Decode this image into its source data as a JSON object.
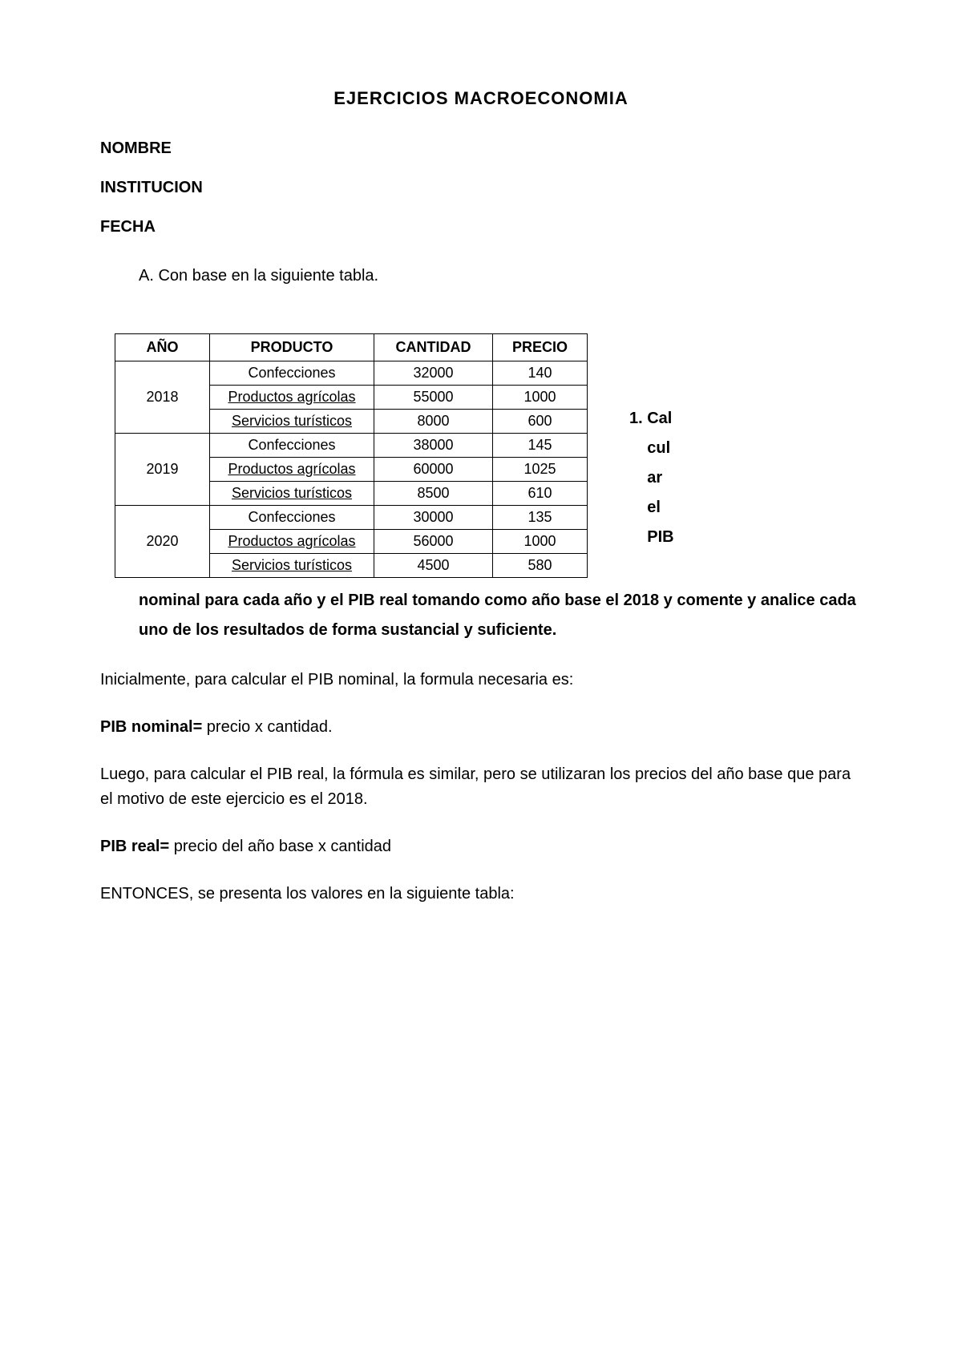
{
  "title": "EJERCICIOS MACROECONOMIA",
  "fields": {
    "nombre": "NOMBRE",
    "institucion": "INSTITUCION",
    "fecha": "FECHA"
  },
  "itemA": "A. Con base en la siguiente tabla.",
  "table": {
    "headers": {
      "year": "AÑO",
      "product": "PRODUCTO",
      "qty": "CANTIDAD",
      "price": "PRECIO"
    },
    "groups": [
      {
        "year": "2018",
        "rows": [
          {
            "product": "Confecciones",
            "qty": "32000",
            "price": "140",
            "underline": false
          },
          {
            "product": "Productos agrícolas",
            "qty": "55000",
            "price": "1000",
            "underline": true
          },
          {
            "product": "Servicios turísticos",
            "qty": "8000",
            "price": "600",
            "underline": true
          }
        ]
      },
      {
        "year": "2019",
        "rows": [
          {
            "product": "Confecciones",
            "qty": "38000",
            "price": "145",
            "underline": false
          },
          {
            "product": "Productos agrícolas",
            "qty": "60000",
            "price": "1025",
            "underline": true
          },
          {
            "product": "Servicios turísticos",
            "qty": "8500",
            "price": "610",
            "underline": true
          }
        ]
      },
      {
        "year": "2020",
        "rows": [
          {
            "product": "Confecciones",
            "qty": "30000",
            "price": "135",
            "underline": false
          },
          {
            "product": "Productos agrícolas",
            "qty": "56000",
            "price": "1000",
            "underline": true
          },
          {
            "product": "Servicios turísticos",
            "qty": "4500",
            "price": "580",
            "underline": true
          }
        ]
      }
    ],
    "border_color": "#000000",
    "cell_fontsize": 18,
    "header_fontsize": 18,
    "background_color": "#ffffff"
  },
  "sideText": {
    "prefix": "1. ",
    "lines": [
      "Cal",
      "cul",
      "ar",
      "el",
      "PIB"
    ]
  },
  "continuation": "nominal para cada año y el PIB real tomando como año base el 2018 y comente y analice cada uno de los resultados de forma sustancial y suficiente.",
  "paragraphs": {
    "p1": "Inicialmente, para calcular el PIB nominal, la formula necesaria es:",
    "p2_bold": "PIB nominal=",
    "p2_rest": " precio x cantidad.",
    "p3": "Luego, para calcular el PIB real, la fórmula es similar, pero se utilizaran los precios del año base que para el motivo de este ejercicio es el 2018.",
    "p4_bold": "PIB real=",
    "p4_rest": " precio del año base x cantidad",
    "p5": "ENTONCES, se presenta  los valores en la siguiente tabla:"
  },
  "colors": {
    "text": "#000000",
    "background": "#ffffff"
  }
}
